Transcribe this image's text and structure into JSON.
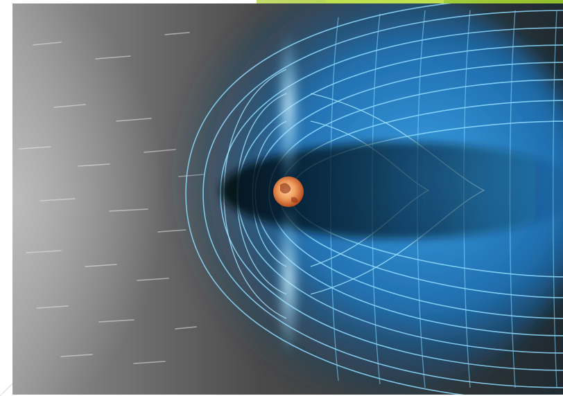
{
  "image": {
    "subject": "magnetosphere-illustration",
    "colors": {
      "space_light": "#8a8a8a",
      "space_dark": "#2a2a2a",
      "field_line": "#7fd4ff",
      "field_glow": "#2a8fd8",
      "tail_shadow": "#0b1a26",
      "planet_core": "#f0a060",
      "planet_edge": "#c04a1a",
      "accent_green": "#a4cc3a"
    },
    "icons": [
      "planet-icon"
    ]
  }
}
